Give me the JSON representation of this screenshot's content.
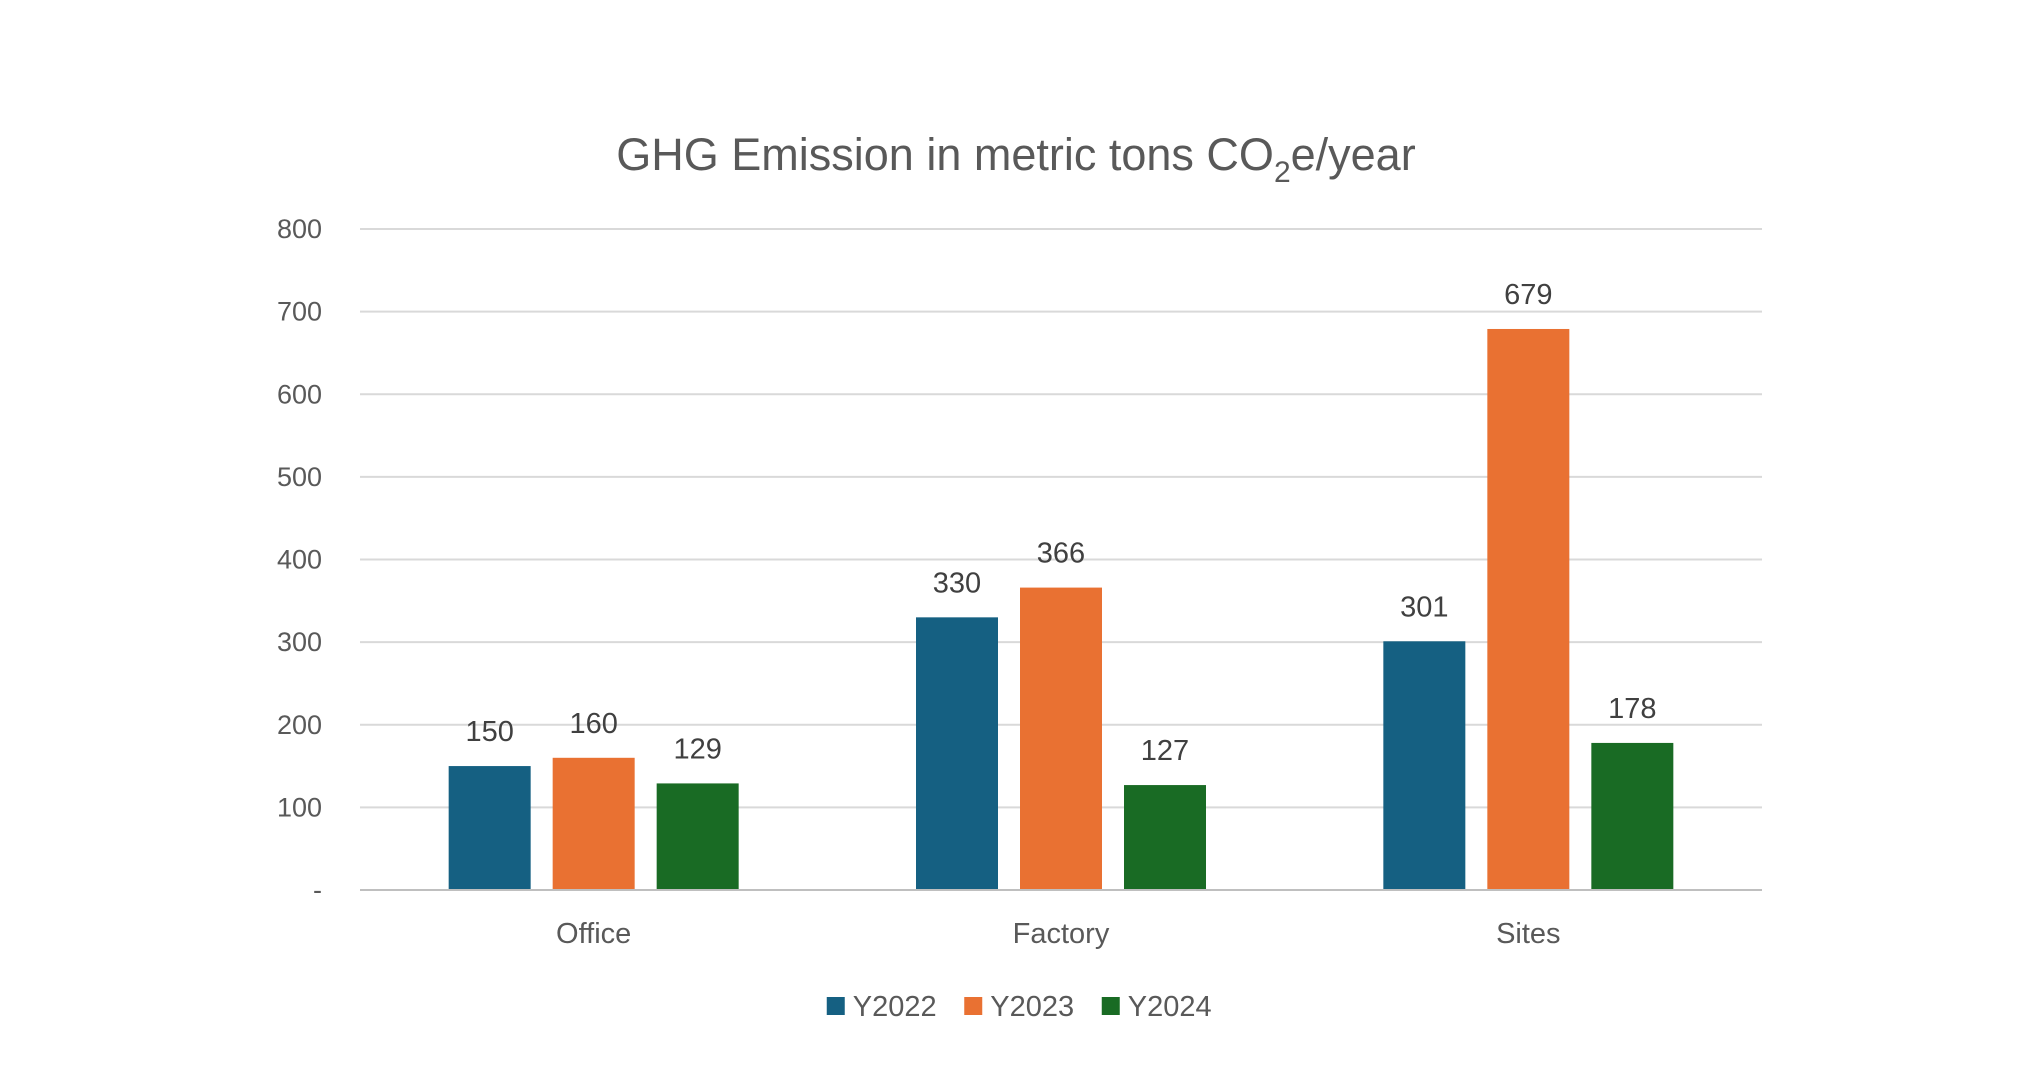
{
  "chart_data": {
    "type": "bar",
    "title": {
      "prefix": "GHG Emission in metric tons CO",
      "subscript": "2",
      "suffix": "e/year"
    },
    "categories": [
      "Office",
      "Factory",
      "Sites"
    ],
    "series": [
      {
        "name": "Y2022",
        "color": "#156082",
        "values": [
          150,
          330,
          301
        ]
      },
      {
        "name": "Y2023",
        "color": "#E97132",
        "values": [
          160,
          366,
          679
        ]
      },
      {
        "name": "Y2024",
        "color": "#196B24",
        "values": [
          129,
          127,
          178
        ]
      }
    ],
    "yticks": [
      0,
      100,
      200,
      300,
      400,
      500,
      600,
      700,
      800
    ],
    "ytick_labels": [
      "-",
      "100",
      "200",
      "300",
      "400",
      "500",
      "600",
      "700",
      "800"
    ],
    "ylim": [
      0,
      800
    ],
    "xlabel": "",
    "ylabel": "",
    "grid": true,
    "legend_position": "bottom"
  }
}
